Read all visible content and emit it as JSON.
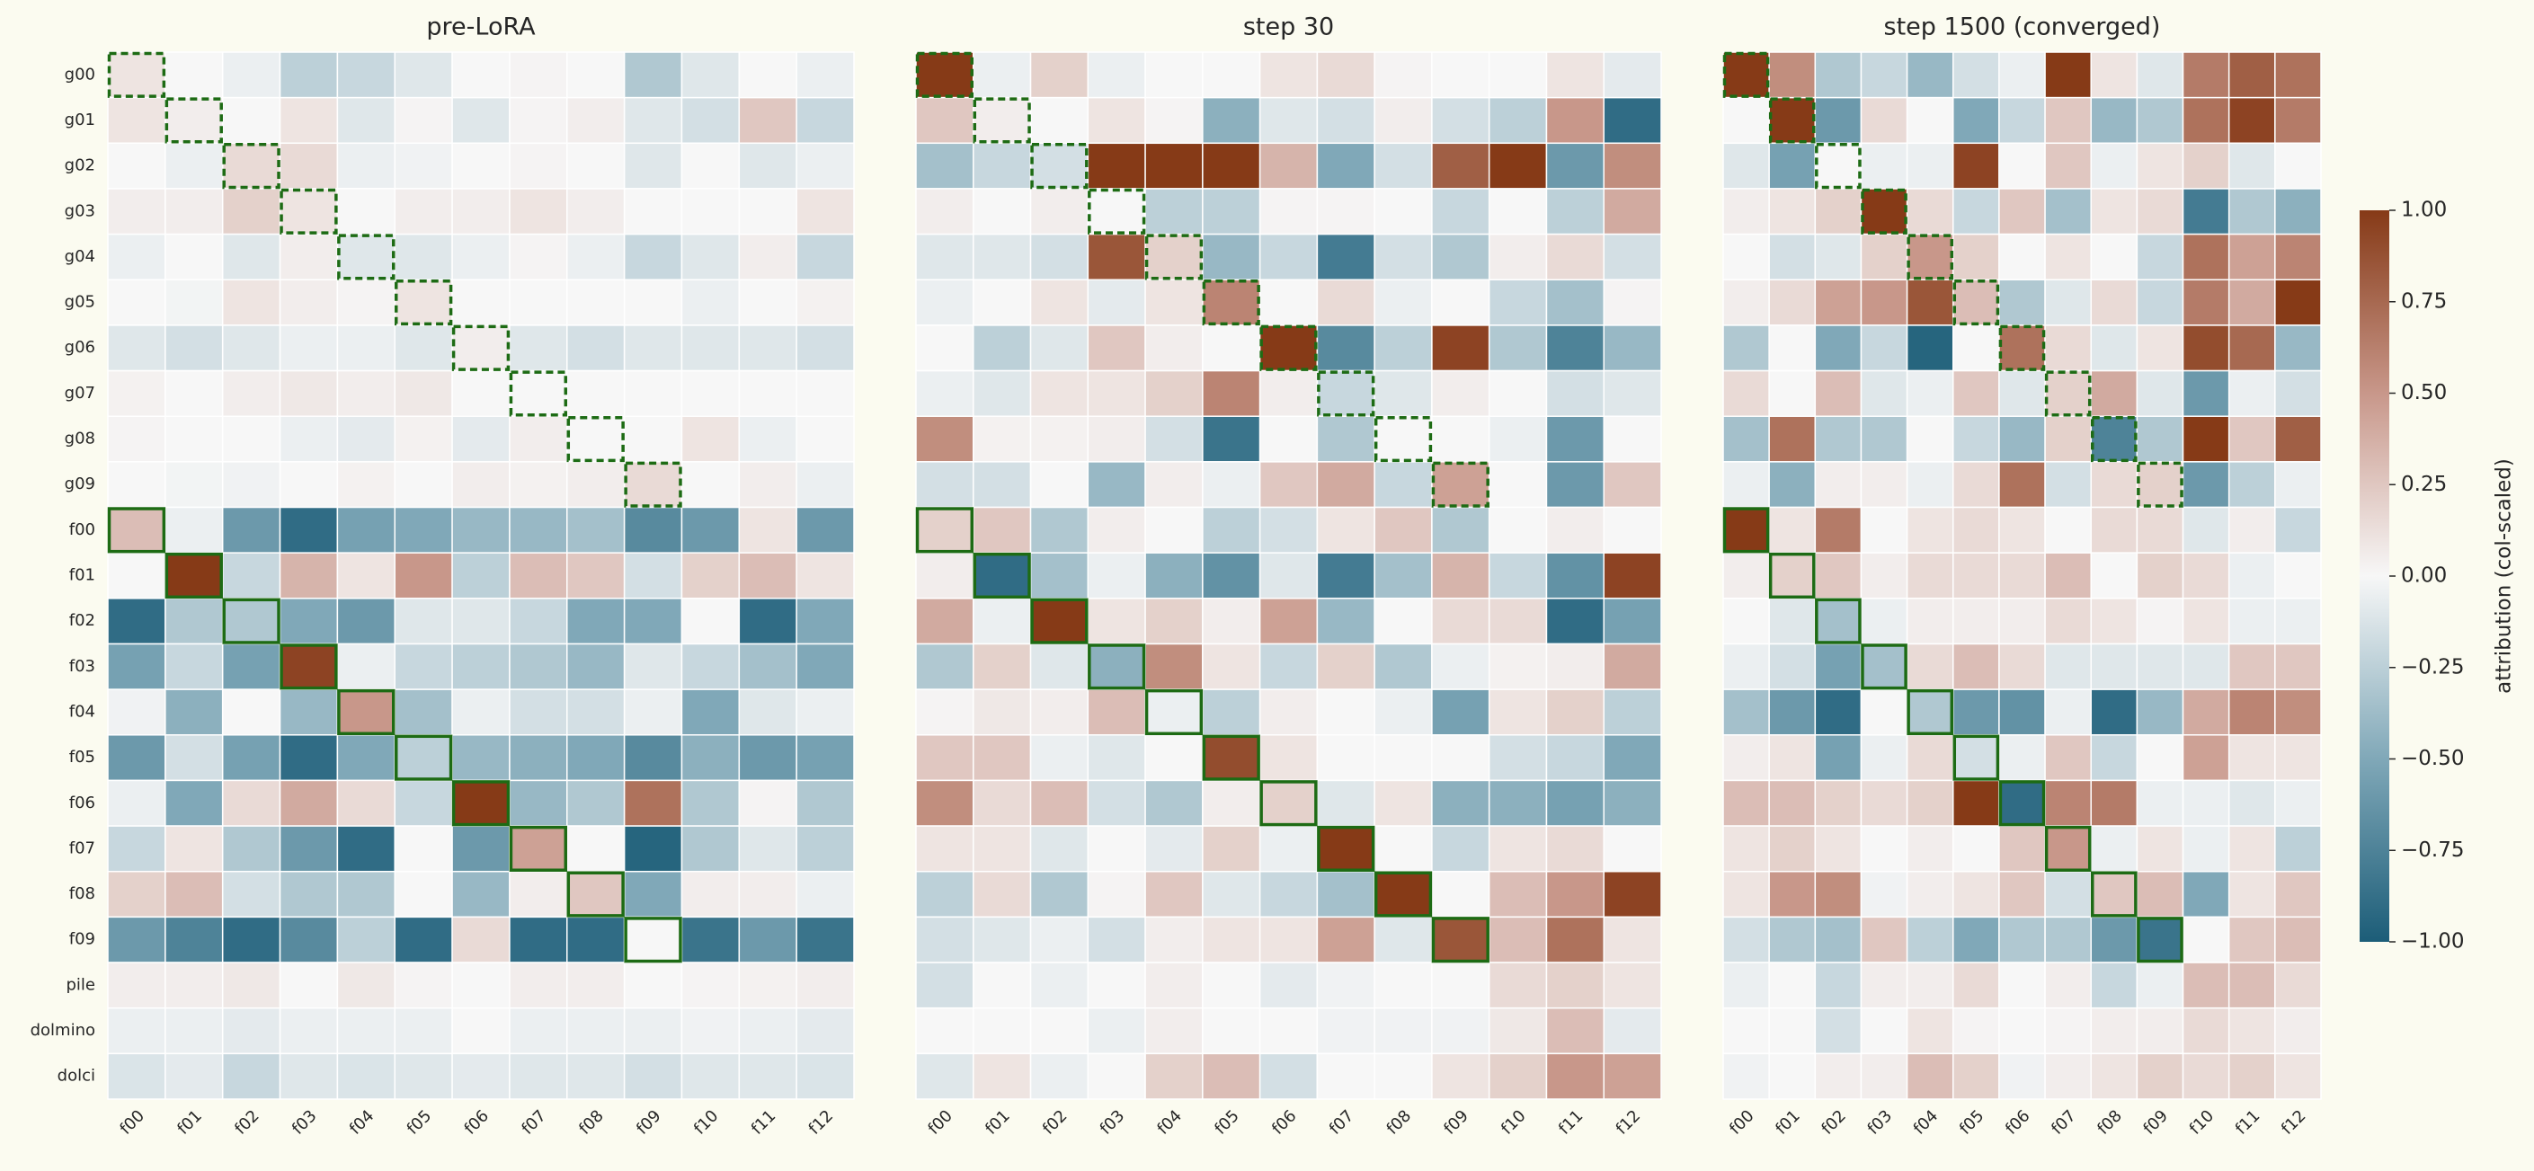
{
  "chart_data": [
    {
      "type": "heatmap",
      "title": "pre-LoRA",
      "y_categories": [
        "g00",
        "g01",
        "g02",
        "g03",
        "g04",
        "g05",
        "g06",
        "g07",
        "g08",
        "g09",
        "f00",
        "f01",
        "f02",
        "f03",
        "f04",
        "f05",
        "f06",
        "f07",
        "f08",
        "f09",
        "pile",
        "dolmino",
        "dolci"
      ],
      "x_categories": [
        "f00",
        "f01",
        "f02",
        "f03",
        "f04",
        "f05",
        "f06",
        "f07",
        "f08",
        "f09",
        "f10",
        "f11",
        "f12"
      ],
      "clim": [
        -1,
        1
      ],
      "cmap": [
        "#1c5d78",
        "#80a8b8",
        "#f7f7f7",
        "#c8978a",
        "#863a17"
      ],
      "values": [
        [
          0.1,
          0,
          -0.05,
          -0.25,
          -0.2,
          -0.1,
          0,
          0.02,
          0,
          -0.3,
          -0.1,
          0,
          -0.05
        ],
        [
          0.1,
          0.05,
          0,
          0.1,
          -0.1,
          0.02,
          -0.1,
          0.02,
          0.05,
          -0.1,
          -0.15,
          0.25,
          -0.2
        ],
        [
          0,
          -0.05,
          0.15,
          0.15,
          -0.05,
          -0.03,
          0,
          0.02,
          0,
          -0.1,
          0,
          -0.1,
          -0.05
        ],
        [
          0.05,
          0.05,
          0.2,
          0.1,
          0,
          0.05,
          0.05,
          0.1,
          0.05,
          0,
          0,
          0,
          0.1
        ],
        [
          -0.05,
          0,
          -0.1,
          0.05,
          -0.1,
          -0.1,
          -0.05,
          0.02,
          -0.05,
          -0.2,
          -0.1,
          0.05,
          -0.2
        ],
        [
          0,
          -0.02,
          0.1,
          0.05,
          0.02,
          0.1,
          0,
          0,
          0,
          0,
          -0.05,
          0,
          0.03
        ],
        [
          -0.1,
          -0.15,
          -0.1,
          -0.05,
          -0.05,
          -0.1,
          0.05,
          -0.1,
          -0.15,
          -0.1,
          -0.1,
          -0.1,
          -0.15
        ],
        [
          0.03,
          0,
          0.05,
          0.08,
          0.05,
          0.08,
          0,
          0,
          0,
          0,
          0,
          0,
          0
        ],
        [
          0.02,
          0,
          0,
          -0.05,
          -0.08,
          0.03,
          -0.08,
          0.05,
          0,
          0,
          0.1,
          -0.05,
          0
        ],
        [
          0,
          -0.02,
          -0.03,
          0,
          0.03,
          0,
          0.05,
          0.03,
          0.05,
          0.15,
          0,
          0.05,
          -0.05
        ],
        [
          0.3,
          -0.05,
          -0.6,
          -0.9,
          -0.55,
          -0.5,
          -0.4,
          -0.4,
          -0.35,
          -0.7,
          -0.6,
          0.1,
          -0.6
        ],
        [
          0,
          1.0,
          -0.2,
          0.35,
          0.1,
          0.5,
          -0.25,
          0.3,
          0.25,
          -0.15,
          0.2,
          0.3,
          0.1
        ],
        [
          -0.9,
          -0.3,
          -0.3,
          -0.5,
          -0.6,
          -0.1,
          -0.1,
          -0.2,
          -0.5,
          -0.5,
          0,
          -0.9,
          -0.5
        ],
        [
          -0.55,
          -0.2,
          -0.55,
          0.95,
          -0.05,
          -0.2,
          -0.25,
          -0.3,
          -0.4,
          -0.1,
          -0.2,
          -0.35,
          -0.5
        ],
        [
          -0.03,
          -0.45,
          0,
          -0.4,
          0.5,
          -0.35,
          -0.05,
          -0.15,
          -0.15,
          -0.05,
          -0.5,
          -0.1,
          -0.05
        ],
        [
          -0.6,
          -0.15,
          -0.55,
          -0.9,
          -0.5,
          -0.25,
          -0.4,
          -0.45,
          -0.5,
          -0.7,
          -0.45,
          -0.6,
          -0.55
        ],
        [
          -0.05,
          -0.5,
          0.15,
          0.4,
          0.15,
          -0.2,
          1.0,
          -0.4,
          -0.3,
          0.7,
          -0.3,
          0.02,
          -0.3
        ],
        [
          -0.2,
          0.1,
          -0.3,
          -0.6,
          -0.9,
          0,
          -0.6,
          0.45,
          0,
          -0.95,
          -0.3,
          -0.1,
          -0.25
        ],
        [
          0.2,
          0.3,
          -0.15,
          -0.3,
          -0.3,
          0,
          -0.4,
          0.05,
          0.25,
          -0.5,
          0.05,
          0.05,
          -0.05
        ],
        [
          -0.6,
          -0.75,
          -0.9,
          -0.7,
          -0.25,
          -0.9,
          0.15,
          -0.9,
          -0.9,
          0,
          -0.85,
          -0.6,
          -0.85
        ],
        [
          0.05,
          0.05,
          0.08,
          0,
          0.08,
          0.02,
          0,
          0.05,
          0.05,
          0,
          0.02,
          0.03,
          0.05
        ],
        [
          -0.05,
          -0.05,
          -0.08,
          -0.05,
          -0.05,
          -0.05,
          0,
          -0.05,
          -0.05,
          -0.05,
          -0.03,
          -0.05,
          -0.08
        ],
        [
          -0.12,
          -0.08,
          -0.2,
          -0.1,
          -0.12,
          -0.1,
          -0.08,
          -0.1,
          -0.1,
          -0.15,
          -0.1,
          -0.1,
          -0.12
        ]
      ]
    },
    {
      "type": "heatmap",
      "title": "step 30",
      "x_categories": [
        "f00",
        "f01",
        "f02",
        "f03",
        "f04",
        "f05",
        "f06",
        "f07",
        "f08",
        "f09",
        "f10",
        "f11",
        "f12"
      ],
      "clim": [
        -1,
        1
      ],
      "cmap": [
        "#1c5d78",
        "#80a8b8",
        "#f7f7f7",
        "#c8978a",
        "#863a17"
      ],
      "values": [
        [
          1.0,
          -0.05,
          0.2,
          -0.05,
          0,
          0,
          0.1,
          0.15,
          0.02,
          0,
          0,
          0.1,
          -0.08
        ],
        [
          0.25,
          0.05,
          0,
          0.1,
          0.02,
          -0.45,
          -0.1,
          -0.15,
          0.05,
          -0.15,
          -0.25,
          0.5,
          -0.9
        ],
        [
          -0.35,
          -0.2,
          -0.15,
          1.0,
          1.0,
          1.0,
          0.35,
          -0.5,
          -0.15,
          0.8,
          1.0,
          -0.6,
          0.55
        ],
        [
          0.05,
          0,
          0.05,
          0,
          -0.25,
          -0.25,
          0.02,
          0.02,
          0,
          -0.2,
          0,
          -0.25,
          0.4
        ],
        [
          -0.1,
          -0.1,
          -0.15,
          0.85,
          0.2,
          -0.4,
          -0.2,
          -0.8,
          -0.15,
          -0.3,
          0.05,
          0.15,
          -0.15
        ],
        [
          -0.05,
          0,
          0.1,
          -0.08,
          0.1,
          0.6,
          0,
          0.15,
          -0.05,
          0,
          -0.2,
          -0.35,
          0.02
        ],
        [
          0,
          -0.25,
          -0.1,
          0.25,
          0.05,
          0,
          1.0,
          -0.7,
          -0.25,
          0.95,
          -0.3,
          -0.75,
          -0.4
        ],
        [
          -0.05,
          -0.1,
          0.1,
          0.1,
          0.2,
          0.6,
          0.05,
          -0.2,
          -0.1,
          0.05,
          0,
          -0.15,
          -0.1
        ],
        [
          0.55,
          0.03,
          0.03,
          0.05,
          -0.15,
          -0.85,
          0,
          -0.3,
          0,
          0,
          -0.05,
          -0.6,
          0
        ],
        [
          -0.15,
          -0.15,
          0,
          -0.4,
          0.05,
          -0.05,
          0.25,
          0.4,
          -0.2,
          0.45,
          0,
          -0.6,
          0.25
        ],
        [
          0.2,
          0.25,
          -0.3,
          0.05,
          0,
          -0.25,
          -0.15,
          0.1,
          0.25,
          -0.3,
          0,
          0.05,
          0
        ],
        [
          0.05,
          -0.9,
          -0.35,
          -0.05,
          -0.45,
          -0.65,
          -0.1,
          -0.8,
          -0.35,
          0.35,
          -0.2,
          -0.65,
          0.95
        ],
        [
          0.4,
          -0.05,
          1.0,
          0.1,
          0.2,
          0.05,
          0.45,
          -0.4,
          0,
          0.15,
          0.15,
          -0.9,
          -0.55
        ],
        [
          -0.3,
          0.2,
          -0.1,
          -0.45,
          0.55,
          0.1,
          -0.2,
          0.2,
          -0.3,
          -0.05,
          0.03,
          0.05,
          0.4
        ],
        [
          0.02,
          0.08,
          0.05,
          0.3,
          -0.05,
          -0.25,
          0.05,
          0,
          -0.05,
          -0.55,
          0.1,
          0.2,
          -0.25
        ],
        [
          0.25,
          0.25,
          -0.05,
          -0.1,
          0,
          0.9,
          0.1,
          0,
          0,
          0,
          -0.15,
          -0.2,
          -0.5
        ],
        [
          0.55,
          0.15,
          0.3,
          -0.15,
          -0.3,
          0.05,
          0.2,
          -0.1,
          0.1,
          -0.45,
          -0.45,
          -0.55,
          -0.45
        ],
        [
          0.1,
          0.1,
          -0.1,
          0,
          -0.08,
          0.2,
          -0.05,
          1.0,
          0,
          -0.2,
          0.1,
          0.15,
          0
        ],
        [
          -0.25,
          0.15,
          -0.3,
          0.02,
          0.25,
          -0.1,
          -0.2,
          -0.35,
          1.0,
          0,
          0.3,
          0.5,
          0.95
        ],
        [
          -0.15,
          -0.1,
          -0.05,
          -0.15,
          0.05,
          0.1,
          0.1,
          0.45,
          -0.1,
          0.85,
          0.3,
          0.7,
          0.1
        ],
        [
          -0.15,
          0,
          -0.05,
          0,
          0.05,
          0,
          -0.08,
          -0.03,
          0,
          0,
          0.15,
          0.2,
          0.1
        ],
        [
          0,
          0,
          0,
          -0.05,
          0.05,
          0,
          0,
          -0.03,
          -0.03,
          -0.03,
          0.08,
          0.3,
          -0.08
        ],
        [
          -0.1,
          0.1,
          -0.05,
          0,
          0.2,
          0.3,
          -0.15,
          0,
          0,
          0.1,
          0.2,
          0.5,
          0.45
        ]
      ]
    },
    {
      "type": "heatmap",
      "title": "step 1500 (converged)",
      "x_categories": [
        "f00",
        "f01",
        "f02",
        "f03",
        "f04",
        "f05",
        "f06",
        "f07",
        "f08",
        "f09",
        "f10",
        "f11",
        "f12"
      ],
      "clim": [
        -1,
        1
      ],
      "cmap": [
        "#1c5d78",
        "#80a8b8",
        "#f7f7f7",
        "#c8978a",
        "#863a17"
      ],
      "colorbar": {
        "label": "attribution (col-scaled)",
        "ticks": [
          {
            "value": -1,
            "label": "−1.00"
          },
          {
            "value": -0.75,
            "label": "−0.75"
          },
          {
            "value": -0.5,
            "label": "−0.50"
          },
          {
            "value": -0.25,
            "label": "−0.25"
          },
          {
            "value": 0,
            "label": "0.00"
          },
          {
            "value": 0.25,
            "label": "0.25"
          },
          {
            "value": 0.5,
            "label": "0.50"
          },
          {
            "value": 0.75,
            "label": "0.75"
          },
          {
            "value": 1,
            "label": "1.00"
          }
        ]
      },
      "values": [
        [
          1.0,
          0.55,
          -0.3,
          -0.2,
          -0.4,
          -0.15,
          -0.05,
          1.0,
          0.1,
          -0.1,
          0.65,
          0.8,
          0.7
        ],
        [
          0,
          1.0,
          -0.6,
          0.15,
          0,
          -0.5,
          -0.2,
          0.25,
          -0.4,
          -0.3,
          0.7,
          0.95,
          0.65
        ],
        [
          -0.1,
          -0.55,
          0,
          -0.05,
          -0.05,
          0.95,
          0,
          0.25,
          -0.05,
          0.1,
          0.2,
          -0.1,
          0
        ],
        [
          0.05,
          0.1,
          0.2,
          1.0,
          0.15,
          -0.2,
          0.25,
          -0.35,
          0.1,
          0.15,
          -0.8,
          -0.3,
          -0.45
        ],
        [
          0,
          -0.15,
          -0.1,
          0.2,
          0.5,
          0.2,
          0,
          0.1,
          0,
          -0.2,
          0.7,
          0.45,
          0.6
        ],
        [
          0.05,
          0.15,
          0.45,
          0.5,
          0.85,
          0.3,
          -0.3,
          -0.1,
          0.15,
          -0.2,
          0.65,
          0.4,
          1.0
        ],
        [
          -0.3,
          0,
          -0.5,
          -0.2,
          -0.95,
          0,
          0.7,
          0.15,
          -0.1,
          0.1,
          0.9,
          0.75,
          -0.4
        ],
        [
          0.15,
          0,
          0.3,
          -0.1,
          -0.05,
          0.25,
          -0.1,
          0.2,
          0.4,
          -0.1,
          -0.6,
          -0.05,
          -0.15
        ],
        [
          -0.35,
          0.7,
          -0.3,
          -0.3,
          0,
          -0.2,
          -0.4,
          0.2,
          -0.75,
          -0.3,
          1.0,
          0.25,
          0.8
        ],
        [
          -0.05,
          -0.45,
          0.05,
          0.05,
          -0.05,
          0.15,
          0.7,
          -0.15,
          0.15,
          0.2,
          -0.6,
          -0.25,
          -0.05
        ],
        [
          1.0,
          0.1,
          0.65,
          0,
          0.1,
          0.15,
          0.1,
          0,
          0.15,
          0.15,
          -0.1,
          0.05,
          -0.2
        ],
        [
          0.05,
          0.2,
          0.25,
          0.05,
          0.15,
          0.15,
          0.15,
          0.3,
          0,
          0.2,
          0.15,
          -0.05,
          0
        ],
        [
          0,
          -0.1,
          -0.35,
          -0.05,
          0.05,
          0.05,
          0.05,
          0.15,
          0.1,
          0.02,
          0.1,
          -0.05,
          -0.05
        ],
        [
          -0.05,
          -0.15,
          -0.55,
          -0.35,
          0.15,
          0.3,
          0.15,
          -0.1,
          -0.1,
          -0.1,
          -0.1,
          0.25,
          0.25
        ],
        [
          -0.35,
          -0.6,
          -0.9,
          0,
          -0.3,
          -0.6,
          -0.65,
          -0.05,
          -0.9,
          -0.4,
          0.4,
          0.6,
          0.55
        ],
        [
          0.05,
          0.1,
          -0.55,
          -0.05,
          0.15,
          -0.15,
          -0.05,
          0.25,
          -0.2,
          0,
          0.45,
          0.1,
          0.1
        ],
        [
          0.3,
          0.3,
          0.2,
          0.15,
          0.2,
          1.0,
          -0.9,
          0.6,
          0.65,
          -0.05,
          -0.05,
          -0.1,
          -0.05
        ],
        [
          0.1,
          0.2,
          0.1,
          0,
          0.05,
          0,
          0.25,
          0.5,
          -0.05,
          0.1,
          -0.05,
          0.1,
          -0.25
        ],
        [
          0.1,
          0.5,
          0.55,
          -0.03,
          0.05,
          0.1,
          0.25,
          -0.15,
          0.25,
          0.3,
          -0.5,
          0.1,
          0.25
        ],
        [
          -0.15,
          -0.3,
          -0.35,
          0.25,
          -0.25,
          -0.5,
          -0.3,
          -0.3,
          -0.6,
          -0.85,
          0,
          0.25,
          0.3
        ],
        [
          -0.05,
          0,
          -0.2,
          0.05,
          0.05,
          0.15,
          0,
          0.05,
          -0.2,
          -0.05,
          0.3,
          0.3,
          0.15
        ],
        [
          0,
          0,
          -0.15,
          0,
          0.1,
          0.02,
          0,
          0.02,
          0.05,
          0.05,
          0.15,
          0.1,
          0.05
        ],
        [
          -0.03,
          0,
          0.05,
          0.05,
          0.3,
          0.2,
          -0.03,
          0.05,
          0.1,
          0.2,
          0.15,
          0.2,
          0.1
        ]
      ]
    }
  ]
}
